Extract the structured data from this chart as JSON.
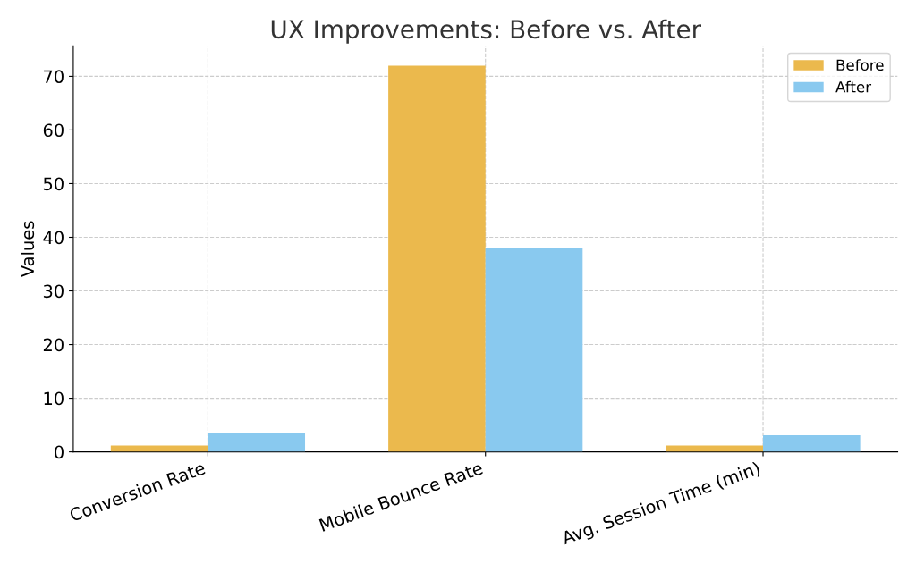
{
  "chart_data": {
    "type": "bar",
    "title": "UX Improvements: Before vs. After",
    "ylabel": "Values",
    "categories": [
      "Conversion Rate",
      "Mobile Bounce Rate",
      "Avg. Session Time (min)"
    ],
    "series": [
      {
        "name": "Before",
        "color": "#ebb94d",
        "values": [
          1.2,
          72,
          1.2
        ]
      },
      {
        "name": "After",
        "color": "#89c9ef",
        "values": [
          3.5,
          38,
          3.1
        ]
      }
    ],
    "ylim": [
      0,
      75.7
    ],
    "yticks": [
      0,
      10,
      20,
      30,
      40,
      50,
      60,
      70
    ],
    "grid": true,
    "legend": "top right"
  }
}
